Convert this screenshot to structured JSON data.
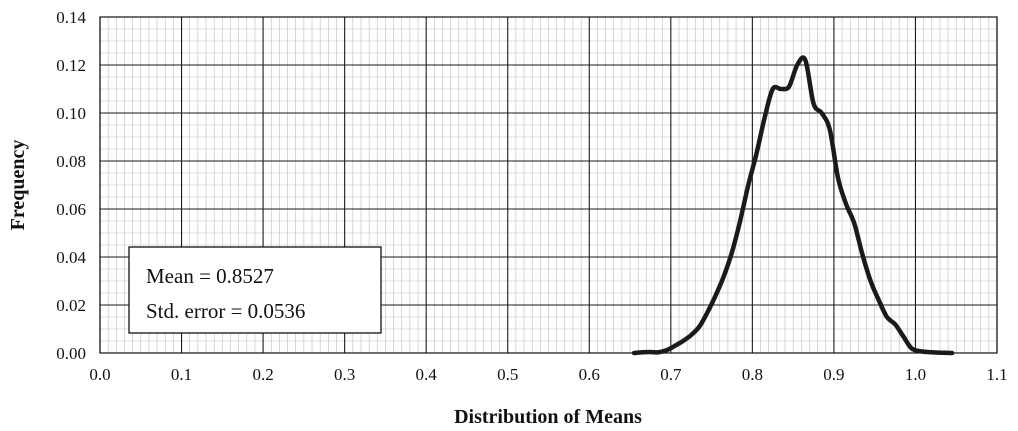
{
  "chart_data": {
    "type": "line",
    "title": "",
    "xlabel": "Distribution of Means",
    "ylabel": "Frequency",
    "xlim": [
      0.0,
      1.1
    ],
    "ylim": [
      0.0,
      0.14
    ],
    "xticks": [
      "0.0",
      "0.1",
      "0.2",
      "0.3",
      "0.4",
      "0.5",
      "0.6",
      "0.7",
      "0.8",
      "0.9",
      "1.0",
      "1.1"
    ],
    "yticks": [
      "0.00",
      "0.02",
      "0.04",
      "0.06",
      "0.08",
      "0.10",
      "0.12",
      "0.14"
    ],
    "grid": "major and minor",
    "legend": "none",
    "series": [
      {
        "color": "#1a1a1a",
        "x": [
          0.655,
          0.665,
          0.675,
          0.685,
          0.695,
          0.705,
          0.715,
          0.725,
          0.735,
          0.745,
          0.755,
          0.765,
          0.775,
          0.785,
          0.795,
          0.805,
          0.815,
          0.825,
          0.835,
          0.845,
          0.855,
          0.865,
          0.875,
          0.885,
          0.895,
          0.905,
          0.915,
          0.925,
          0.935,
          0.945,
          0.955,
          0.965,
          0.975,
          0.985,
          0.995,
          1.005,
          1.015,
          1.025,
          1.035,
          1.045
        ],
        "y": [
          0.0,
          0.0003,
          0.0004,
          0.0003,
          0.0012,
          0.003,
          0.005,
          0.0075,
          0.011,
          0.017,
          0.024,
          0.032,
          0.042,
          0.055,
          0.07,
          0.083,
          0.098,
          0.11,
          0.11,
          0.111,
          0.12,
          0.122,
          0.104,
          0.1,
          0.093,
          0.073,
          0.062,
          0.054,
          0.041,
          0.03,
          0.022,
          0.015,
          0.012,
          0.007,
          0.002,
          0.0008,
          0.0004,
          0.0002,
          0.0001,
          0.0
        ]
      }
    ],
    "annotations": [
      {
        "lines": [
          "Mean = 0.8527",
          "Std. error = 0.0536"
        ],
        "placement": "lower-left"
      }
    ]
  }
}
